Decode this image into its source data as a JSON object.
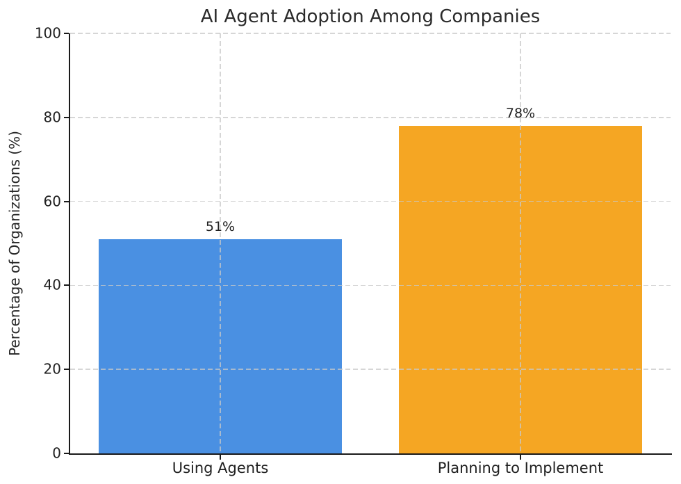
{
  "chart_data": {
    "type": "bar",
    "title": "AI Agent Adoption Among Companies",
    "xlabel": "",
    "ylabel": "Percentage of Organizations (%)",
    "categories": [
      "Using Agents",
      "Planning to Implement"
    ],
    "values": [
      51,
      78
    ],
    "value_labels": [
      "51%",
      "78%"
    ],
    "bar_colors": [
      "#4a90e2",
      "#f5a623"
    ],
    "ylim": [
      0,
      100
    ],
    "yticks": [
      0,
      20,
      40,
      60,
      80,
      100
    ],
    "grid": {
      "style": "dashed",
      "color": "#c8c8c8",
      "horizontal": true,
      "vertical": true,
      "drawn_over_bars": true
    },
    "legend_position": "none",
    "spines": [
      "left",
      "bottom"
    ],
    "bar_width_fraction": 0.405
  }
}
